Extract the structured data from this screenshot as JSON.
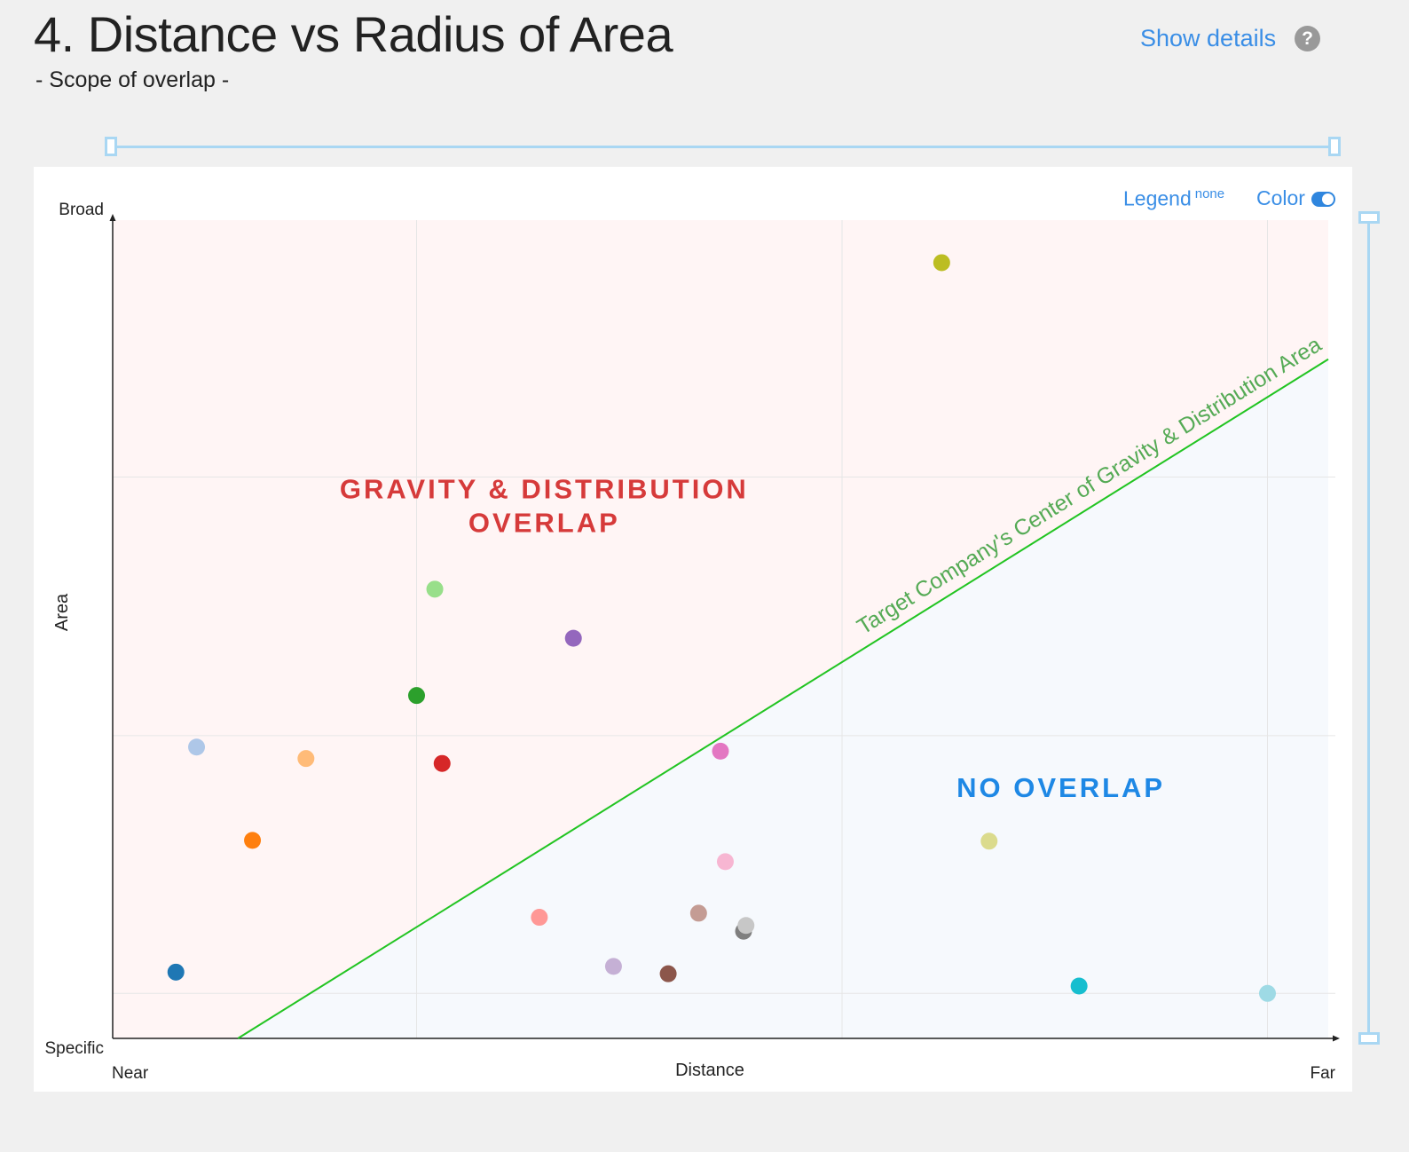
{
  "header": {
    "title": "4. Distance vs Radius of Area",
    "subtitle": "- Scope of overlap -",
    "show_details": "Show details",
    "help": "?"
  },
  "controls": {
    "legend_label": "Legend",
    "legend_value": "none",
    "color_label": "Color",
    "color_on": true
  },
  "colors": {
    "overlap_region": "#fff5f5",
    "no_overlap_region": "#f6f9fd",
    "boundary_line": "#22c422",
    "overlap_text": "#d63a3a",
    "no_overlap_text": "#1e88e5",
    "boundary_text": "#55aa55"
  },
  "chart_data": {
    "type": "scatter",
    "title": "",
    "xlabel": "Distance",
    "ylabel": "Area",
    "x_tick_labels": {
      "min": "Near",
      "max": "Far"
    },
    "y_tick_labels": {
      "min": "Specific",
      "max": "Broad"
    },
    "xlim": [
      0,
      1
    ],
    "ylim": [
      0,
      1
    ],
    "grid": true,
    "x_gridlines": [
      0.25,
      0.6,
      0.95
    ],
    "y_gridlines": [
      0.055,
      0.37,
      0.686
    ],
    "boundary": {
      "label": "Target Company's Center of Gravity & Distribution Area",
      "from": [
        0.103,
        0
      ],
      "to": [
        1,
        0.83
      ]
    },
    "regions": [
      {
        "name": "overlap",
        "label_lines": [
          "GRAVITY & DISTRIBUTION",
          "OVERLAP"
        ],
        "x": 0.355,
        "y": 0.66
      },
      {
        "name": "no-overlap",
        "label_lines": [
          "NO  OVERLAP"
        ],
        "x": 0.78,
        "y": 0.295
      }
    ],
    "points": [
      {
        "x": 0.682,
        "y": 0.948,
        "color": "#bcbd22"
      },
      {
        "x": 0.265,
        "y": 0.549,
        "color": "#98df8a"
      },
      {
        "x": 0.379,
        "y": 0.489,
        "color": "#9467bd"
      },
      {
        "x": 0.25,
        "y": 0.419,
        "color": "#2ca02c"
      },
      {
        "x": 0.069,
        "y": 0.356,
        "color": "#aec7e8"
      },
      {
        "x": 0.159,
        "y": 0.342,
        "color": "#ffbb78"
      },
      {
        "x": 0.271,
        "y": 0.336,
        "color": "#d62728"
      },
      {
        "x": 0.5,
        "y": 0.351,
        "color": "#e377c2"
      },
      {
        "x": 0.115,
        "y": 0.242,
        "color": "#ff7f0e"
      },
      {
        "x": 0.721,
        "y": 0.241,
        "color": "#dbdb8d"
      },
      {
        "x": 0.504,
        "y": 0.216,
        "color": "#f7b6d2"
      },
      {
        "x": 0.351,
        "y": 0.148,
        "color": "#ff9896"
      },
      {
        "x": 0.482,
        "y": 0.153,
        "color": "#c49c94"
      },
      {
        "x": 0.519,
        "y": 0.131,
        "color": "#7f7f7f"
      },
      {
        "x": 0.521,
        "y": 0.138,
        "color": "#c7c7c7"
      },
      {
        "x": 0.412,
        "y": 0.088,
        "color": "#c5b0d5"
      },
      {
        "x": 0.457,
        "y": 0.079,
        "color": "#8c564b"
      },
      {
        "x": 0.052,
        "y": 0.081,
        "color": "#1f77b4"
      },
      {
        "x": 0.795,
        "y": 0.064,
        "color": "#17becf"
      },
      {
        "x": 0.95,
        "y": 0.055,
        "color": "#9edae5"
      }
    ]
  }
}
